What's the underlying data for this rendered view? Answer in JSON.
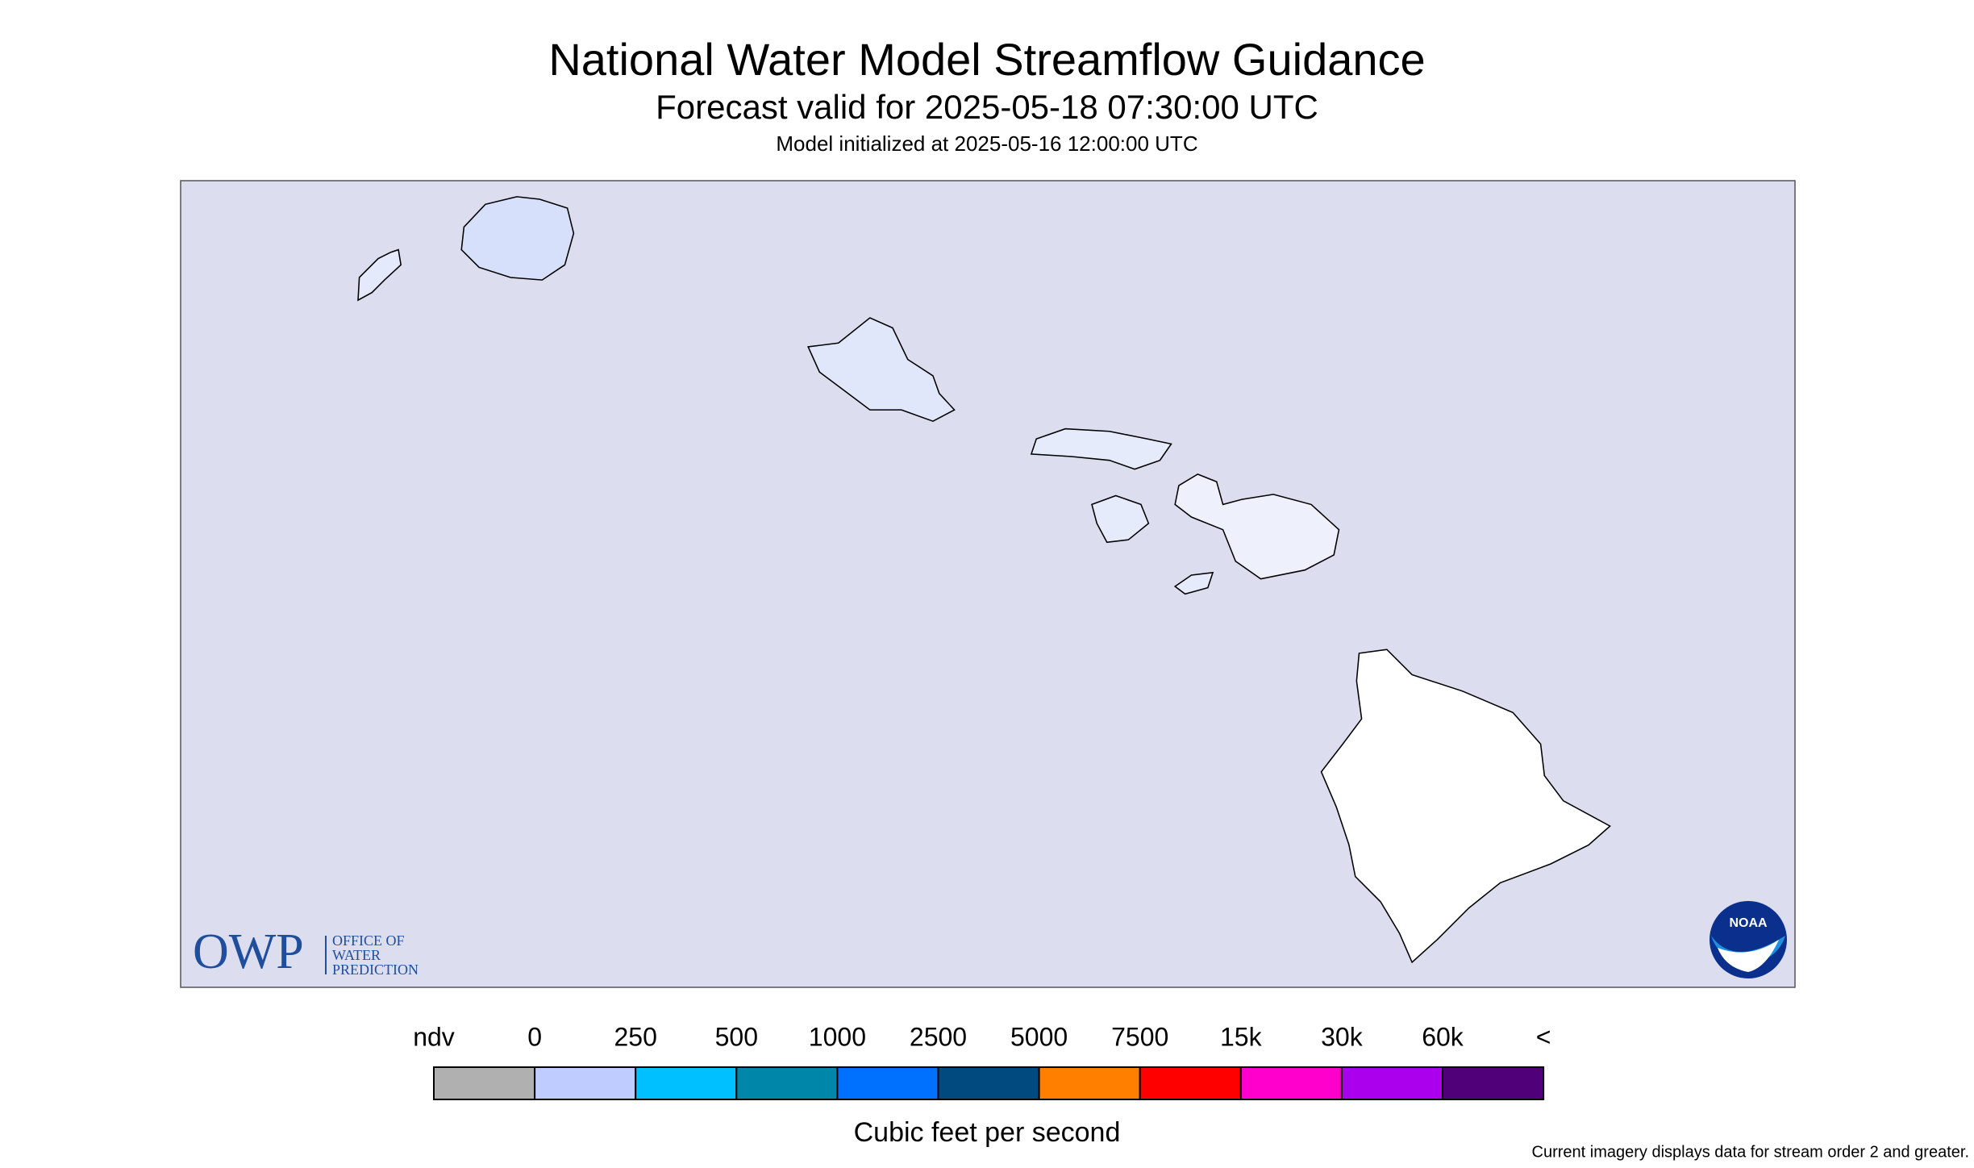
{
  "header": {
    "title": "National Water Model Streamflow Guidance",
    "subtitle": "Forecast valid for 2025-05-18 07:30:00 UTC",
    "note": "Model initialized at 2025-05-16 12:00:00 UTC"
  },
  "map": {
    "logo_left": {
      "abbr": "OWP",
      "lines": [
        "OFFICE OF",
        "WATER",
        "PREDICTION"
      ]
    },
    "logo_right": "NOAA"
  },
  "legend": {
    "labels": [
      "ndv",
      "0",
      "250",
      "500",
      "1000",
      "2500",
      "5000",
      "7500",
      "15k",
      "30k",
      "60k",
      "<"
    ],
    "colors": [
      "#b0b0b0",
      "#bfccff",
      "#00c0ff",
      "#0086a8",
      "#0070ff",
      "#004a80",
      "#ff8000",
      "#ff0000",
      "#ff00cc",
      "#aa00ee",
      "#500078"
    ],
    "title": "Cubic feet per second"
  },
  "footnote": "Current imagery displays data for stream order 2 and greater."
}
